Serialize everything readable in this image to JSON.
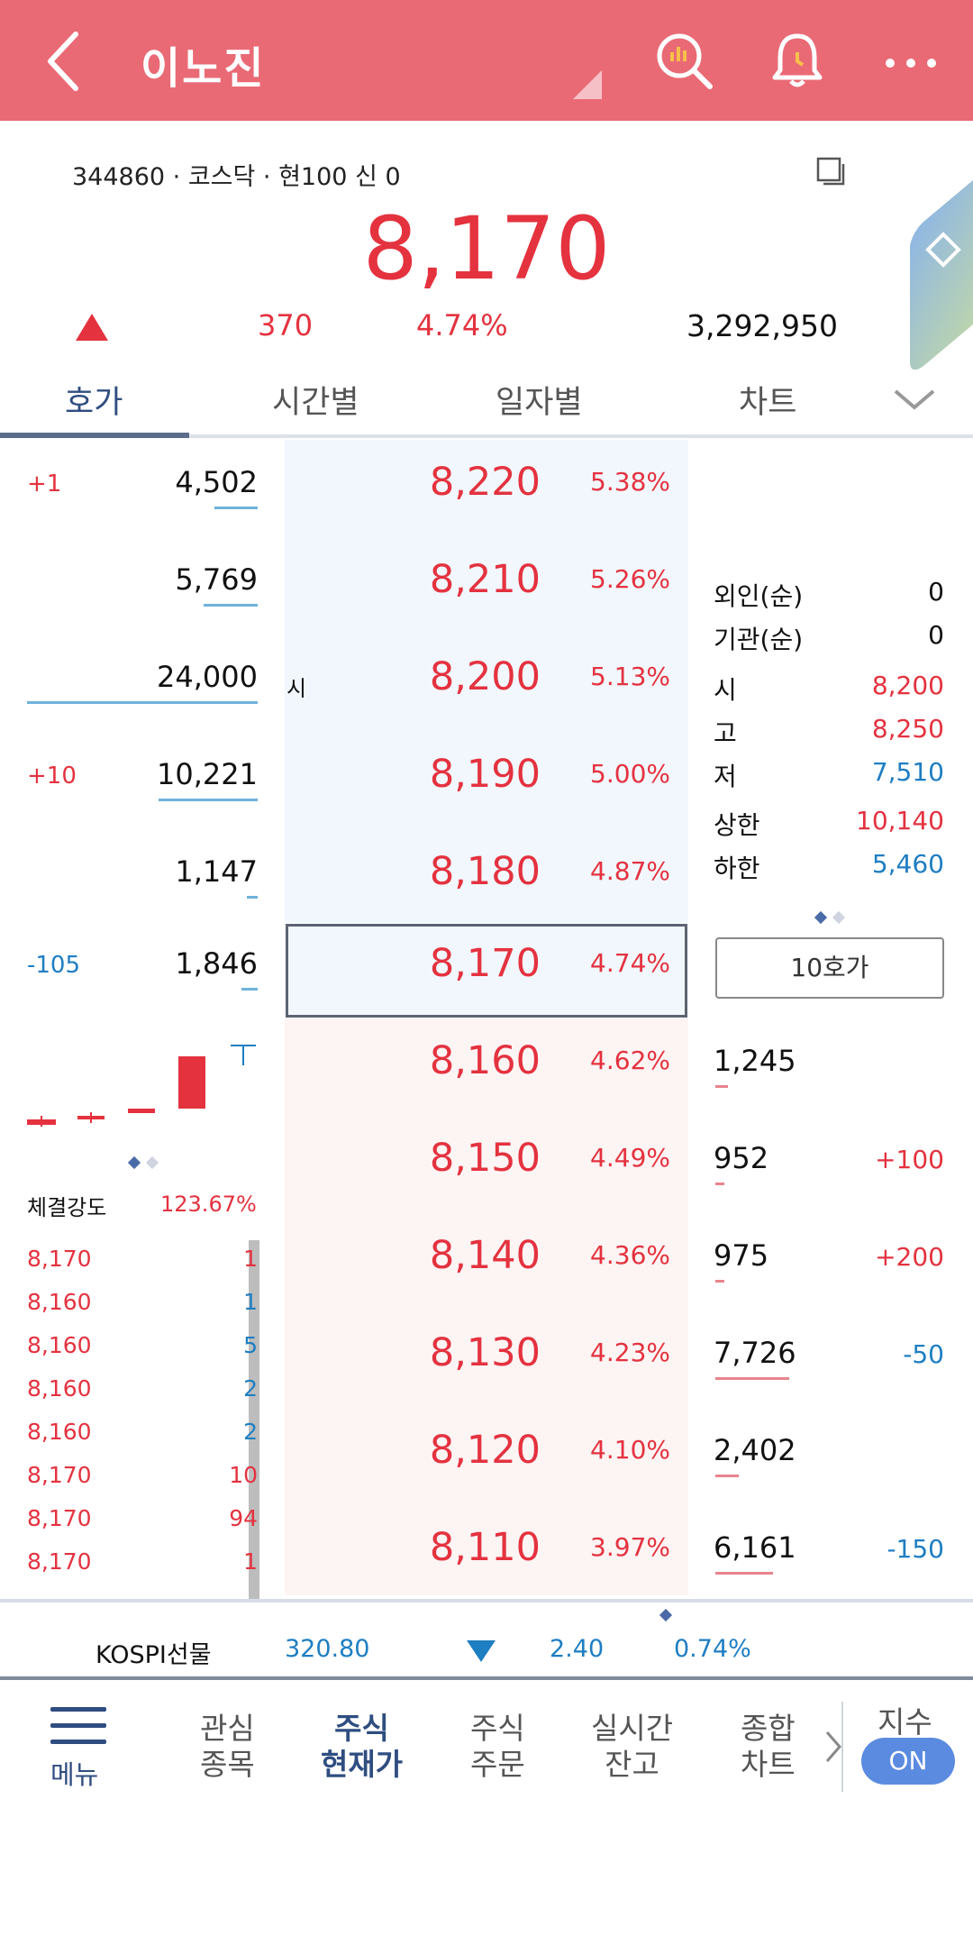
{
  "header": {
    "title": "이노진"
  },
  "stock": {
    "info": "344860 · 코스닥 · 현100 신 0",
    "price": "8,170",
    "change": "370",
    "change_pct": "4.74%",
    "volume": "3,292,950"
  },
  "tabs": [
    "호가",
    "시간별",
    "일자별",
    "차트"
  ],
  "sell_rows": [
    {
      "chg": "+1",
      "qty": "4,502",
      "price": "8,220",
      "pct": "5.38%",
      "marker": ""
    },
    {
      "chg": "",
      "qty": "5,769",
      "price": "8,210",
      "pct": "5.26%",
      "marker": ""
    },
    {
      "chg": "",
      "qty": "24,000",
      "price": "8,200",
      "pct": "5.13%",
      "marker": "시"
    },
    {
      "chg": "+10",
      "qty": "10,221",
      "price": "8,190",
      "pct": "5.00%",
      "marker": ""
    },
    {
      "chg": "",
      "qty": "1,147",
      "price": "8,180",
      "pct": "4.87%",
      "marker": ""
    },
    {
      "chg": "-105",
      "qty": "1,846",
      "price": "8,170",
      "pct": "4.74%",
      "marker": ""
    }
  ],
  "buy_rows": [
    {
      "price": "8,160",
      "pct": "4.62%",
      "qty": "1,245",
      "chg": ""
    },
    {
      "price": "8,150",
      "pct": "4.49%",
      "qty": "952",
      "chg": "+100"
    },
    {
      "price": "8,140",
      "pct": "4.36%",
      "qty": "975",
      "chg": "+200"
    },
    {
      "price": "8,130",
      "pct": "4.23%",
      "qty": "7,726",
      "chg": "-50"
    },
    {
      "price": "8,120",
      "pct": "4.10%",
      "qty": "2,402",
      "chg": ""
    },
    {
      "price": "8,110",
      "pct": "3.97%",
      "qty": "6,161",
      "chg": "-150"
    }
  ],
  "summary": {
    "foreign_label": "외인(순)",
    "foreign_val": "0",
    "inst_label": "기관(순)",
    "inst_val": "0",
    "open_label": "시",
    "open_val": "8,200",
    "high_label": "고",
    "high_val": "8,250",
    "low_label": "저",
    "low_val": "7,510",
    "upper_label": "상한",
    "upper_val": "10,140",
    "lower_label": "하한",
    "lower_val": "5,460"
  },
  "button_10": "10호가",
  "strength": {
    "label": "체결강도",
    "value": "123.67%"
  },
  "trades": [
    {
      "price": "8,170",
      "qty": "1",
      "color": "#e4323f"
    },
    {
      "price": "8,160",
      "qty": "1",
      "color": "#1e7ec2"
    },
    {
      "price": "8,160",
      "qty": "5",
      "color": "#1e7ec2"
    },
    {
      "price": "8,160",
      "qty": "2",
      "color": "#1e7ec2"
    },
    {
      "price": "8,160",
      "qty": "2",
      "color": "#1e7ec2"
    },
    {
      "price": "8,170",
      "qty": "10",
      "color": "#e4323f"
    },
    {
      "price": "8,170",
      "qty": "94",
      "color": "#e4323f"
    },
    {
      "price": "8,170",
      "qty": "1",
      "color": "#e4323f"
    }
  ],
  "ticker": {
    "name": "KOSPI선물",
    "value": "320.80",
    "change": "2.40",
    "pct": "0.74%"
  },
  "nav": {
    "menu": "메뉴",
    "items": [
      {
        "line1": "관심",
        "line2": "종목"
      },
      {
        "line1": "주식",
        "line2": "현재가"
      },
      {
        "line1": "주식",
        "line2": "주문"
      },
      {
        "line1": "실시간",
        "line2": "잔고"
      },
      {
        "line1": "종합",
        "line2": "차트"
      }
    ],
    "index_label": "지수",
    "index_toggle": "ON"
  },
  "colors": {
    "header": "#e96a75",
    "up": "#e4323f",
    "down": "#1e7ec2",
    "accent": "#2f4d80"
  }
}
